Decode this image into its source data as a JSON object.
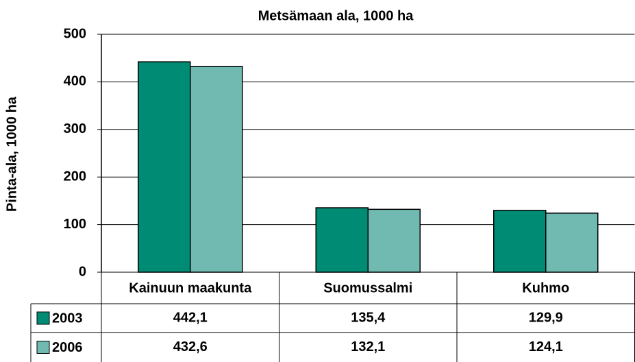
{
  "chart_data": {
    "type": "bar",
    "title": "Metsämaan ala, 1000 ha",
    "y_label": "Pinta-ala, 1000 ha",
    "categories": [
      "Kainuun maakunta",
      "Suomussalmi",
      "Kuhmo"
    ],
    "series": [
      {
        "name": "2003",
        "color": "#008b74",
        "values": [
          442.1,
          135.4,
          129.9
        ],
        "value_labels": [
          "442,1",
          "135,4",
          "129,9"
        ]
      },
      {
        "name": "2006",
        "color": "#70bab2",
        "values": [
          432.6,
          132.1,
          124.1
        ],
        "value_labels": [
          "432,6",
          "132,1",
          "124,1"
        ]
      }
    ],
    "ylim": [
      0,
      500
    ],
    "yticks": [
      0,
      100,
      200,
      300,
      400,
      500
    ],
    "grid": true,
    "data_table": true
  }
}
